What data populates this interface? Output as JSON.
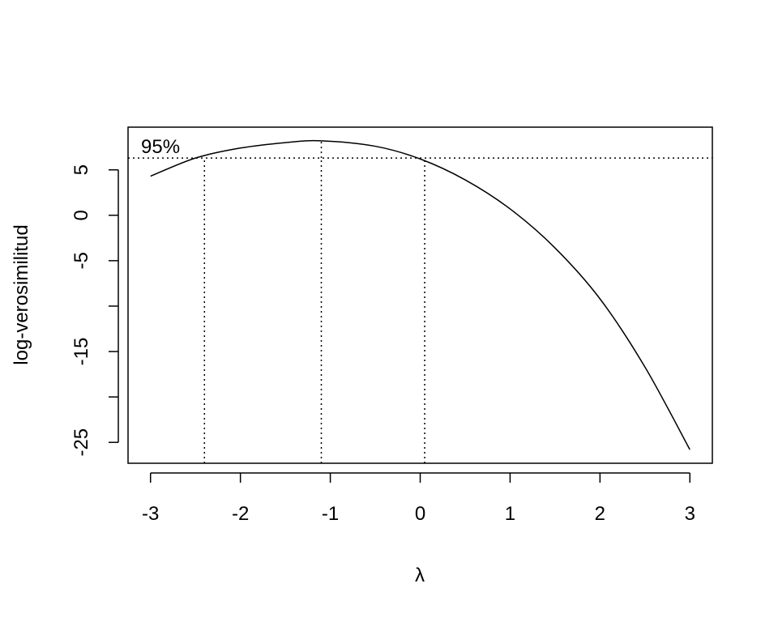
{
  "chart_data": {
    "type": "line",
    "title": "",
    "xlabel": "λ",
    "ylabel": "log-verosimilitud",
    "xlim": [
      -3.25,
      3.25
    ],
    "ylim": [
      -27.3,
      9.7
    ],
    "x_ticks": [
      -3,
      -2,
      -1,
      0,
      1,
      2,
      3
    ],
    "x_tick_labels": [
      "-3",
      "-2",
      "-1",
      "0",
      "1",
      "2",
      "3"
    ],
    "y_ticks": [
      -25,
      -20,
      -15,
      -10,
      -5,
      0,
      5
    ],
    "y_tick_labels": [
      "-25",
      "",
      "-15",
      "",
      "-5",
      "0",
      "5"
    ],
    "series": [
      {
        "x": [
          -3.0,
          -2.5,
          -2.0,
          -1.5,
          -1.1,
          -0.5,
          0.0,
          0.5,
          1.0,
          1.5,
          2.0,
          2.5,
          3.0
        ],
        "y": [
          4.3,
          6.3,
          7.4,
          8.0,
          8.2,
          7.6,
          6.2,
          3.9,
          0.7,
          -3.6,
          -9.2,
          -16.7,
          -25.8
        ]
      }
    ],
    "ci_level_y": 6.3,
    "ci_label": "95%",
    "vlines_x": [
      -2.4,
      -1.1,
      0.05
    ],
    "grid": false,
    "line_color": "#000000"
  }
}
